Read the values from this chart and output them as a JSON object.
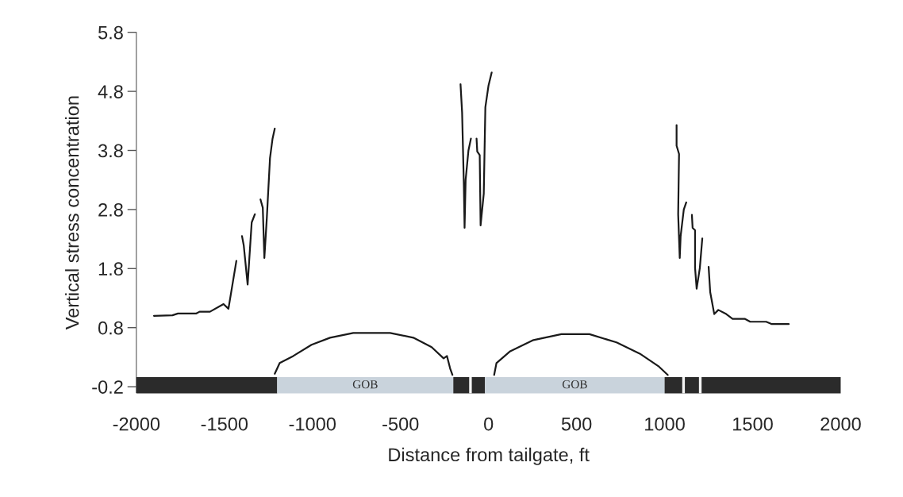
{
  "chart_data": {
    "type": "line",
    "xlabel": "Distance from tailgate, ft",
    "ylabel": "Vertical stress concentration",
    "xlim": [
      -2000,
      2000
    ],
    "xticks": [
      -2000,
      -1500,
      -1000,
      -500,
      0,
      500,
      1000,
      1500,
      2000
    ],
    "ylim": [
      -0.3,
      5.8
    ],
    "yticks": [
      -0.2,
      0.8,
      1.8,
      2.8,
      3.8,
      4.8,
      5.8
    ],
    "grid": false,
    "legend": false,
    "marker": "none",
    "line_style": "solid",
    "series": [
      {
        "color": "#1a1a1a",
        "x": [
          -1900,
          -1795,
          -1764,
          -1659,
          -1641,
          -1582,
          -1505,
          -1477,
          -1432,
          null,
          -1400,
          -1390,
          -1368,
          -1345,
          -1327,
          null,
          -1295,
          -1282,
          -1277,
          -1273,
          -1259,
          -1241,
          -1227,
          -1214,
          null,
          -1214,
          -1186,
          -1109,
          -1005,
          -900,
          -768,
          -559,
          -427,
          -323,
          -255,
          -236,
          -218,
          -205,
          null,
          -159,
          -150,
          -140,
          -136,
          -130,
          -114,
          -100,
          null,
          -68,
          -64,
          -50,
          -45,
          -27,
          -18,
          0,
          18,
          null,
          32,
          45,
          123,
          255,
          414,
          573,
          727,
          859,
          964,
          1018,
          null,
          1068,
          1068,
          1082,
          1077,
          1086,
          1091,
          1109,
          1123,
          null,
          1155,
          1159,
          1173,
          1173,
          1182,
          1200,
          1214,
          null,
          1250,
          1259,
          1282,
          1305,
          1350,
          1386,
          1455,
          1486,
          1577,
          1609,
          1705
        ],
        "values": [
          1.0,
          1.01,
          1.04,
          1.04,
          1.07,
          1.07,
          1.2,
          1.12,
          1.93,
          null,
          2.35,
          2.19,
          1.53,
          2.58,
          2.72,
          null,
          2.97,
          2.83,
          2.35,
          1.98,
          2.66,
          3.67,
          3.99,
          4.17,
          null,
          0.02,
          0.2,
          0.32,
          0.51,
          0.63,
          0.71,
          0.71,
          0.63,
          0.47,
          0.28,
          0.32,
          0.11,
          0.0,
          null,
          4.92,
          4.44,
          3.2,
          2.49,
          3.3,
          3.8,
          4.0,
          null,
          4.0,
          3.78,
          3.72,
          2.53,
          3.07,
          4.53,
          4.9,
          5.12,
          null,
          0.0,
          0.2,
          0.4,
          0.59,
          0.69,
          0.69,
          0.55,
          0.36,
          0.15,
          0.0,
          null,
          4.23,
          3.88,
          3.74,
          2.72,
          1.98,
          2.35,
          2.8,
          2.92,
          null,
          2.71,
          2.49,
          2.45,
          1.81,
          1.46,
          1.81,
          2.31,
          null,
          1.83,
          1.4,
          1.03,
          1.1,
          1.03,
          0.95,
          0.95,
          0.9,
          0.9,
          0.86,
          0.86
        ]
      }
    ],
    "bands": [
      {
        "axis": "x",
        "from": -2000,
        "to": -1200,
        "color": "#2b2b2b"
      },
      {
        "axis": "x",
        "from": -1200,
        "to": -200,
        "color": "#c9d3dc",
        "label": "GOB"
      },
      {
        "axis": "x",
        "from": -200,
        "to": -20,
        "color": "#2b2b2b"
      },
      {
        "axis": "x",
        "from": -110,
        "to": -95,
        "color": "#f4f4f4"
      },
      {
        "axis": "x",
        "from": -20,
        "to": 1000,
        "color": "#c9d3dc",
        "label": "GOB"
      },
      {
        "axis": "x",
        "from": 1000,
        "to": 2000,
        "color": "#2b2b2b"
      },
      {
        "axis": "x",
        "from": 1100,
        "to": 1115,
        "color": "#f4f4f4"
      },
      {
        "axis": "x",
        "from": 1195,
        "to": 1210,
        "color": "#f4f4f4"
      }
    ]
  }
}
